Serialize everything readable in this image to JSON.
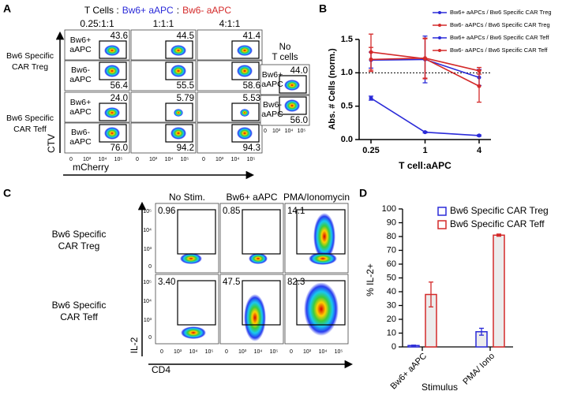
{
  "panel_labels": [
    "A",
    "B",
    "C",
    "D"
  ],
  "panel_a": {
    "header": [
      {
        "text": "T Cells :",
        "color": "#000000"
      },
      {
        "text": "Bw6+ aAPC",
        "color": "#2b2bd8"
      },
      {
        "text": ":",
        "color": "#000000"
      },
      {
        "text": "Bw6- aAPC",
        "color": "#d42a2a"
      }
    ],
    "columns": [
      "0.25:1:1",
      "1:1:1",
      "4:1:1"
    ],
    "rows": [
      {
        "label": [
          "Bw6 Specific",
          "CAR Treg"
        ],
        "top": [
          "43.6",
          "44.5",
          "41.4"
        ],
        "bottom": [
          "56.4",
          "55.5",
          "58.6"
        ]
      },
      {
        "label": [
          "Bw6 Specific",
          "CAR Teff"
        ],
        "top": [
          "24.0",
          "5.79",
          "5.53"
        ],
        "bottom": [
          "76.0",
          "94.2",
          "94.3"
        ]
      }
    ],
    "gate_labels": {
      "top": [
        "Bw6+",
        "aAPC"
      ],
      "bottom": [
        "Bw6-",
        "aAPC"
      ]
    },
    "control": {
      "label": [
        "No",
        "T cells"
      ],
      "top": "44.0",
      "bottom": "56.0"
    },
    "y_axis": "CTV",
    "x_axis": "mCherry",
    "ticks": [
      "0",
      "10³",
      "10⁴",
      "10⁵"
    ]
  },
  "panel_c": {
    "columns": [
      "No Stim.",
      "Bw6+ aAPC",
      "PMA/Ionomycin"
    ],
    "rows": [
      {
        "label": [
          "Bw6 Specific",
          "CAR Treg"
        ],
        "values": [
          "0.96",
          "0.85",
          "14.1"
        ]
      },
      {
        "label": [
          "Bw6 Specific",
          "CAR Teff"
        ],
        "values": [
          "3.40",
          "47.5",
          "82.3"
        ]
      }
    ],
    "y_axis": "IL-2",
    "x_axis": "CD4",
    "ticks": [
      "0",
      "10³",
      "10⁴",
      "10⁵"
    ]
  },
  "chart_data": [
    {
      "type": "line",
      "x_label": "T cell:aAPC",
      "y_label": "Abs. # Cells (norm.)",
      "categories": [
        "0.25",
        "1",
        "4"
      ],
      "ylim": [
        0,
        1.5
      ],
      "yticks": [
        {
          "value": 0,
          "label": "0.0"
        },
        {
          "value": 0.5,
          "label": "0.5"
        },
        {
          "value": 1,
          "label": "1.0"
        },
        {
          "value": 1.5,
          "label": "1.5"
        }
      ],
      "reference_line": 1,
      "legend": "top-right",
      "series": [
        {
          "name": "Bw6+ aAPCs / Bw6 Specific CAR Treg",
          "color": "#2b2bd8",
          "values": [
            1.19,
            1.2,
            0.93
          ],
          "errors": [
            0.12,
            0.35,
            0.12
          ]
        },
        {
          "name": "Bw6- aAPCs / Bw6 Specific CAR Treg",
          "color": "#d42a2a",
          "values": [
            1.31,
            1.21,
            0.8
          ],
          "errors": [
            0.27,
            0.3,
            0.24
          ]
        },
        {
          "name": "Bw6+ aAPCs / Bw6 Specific CAR Teff",
          "color": "#2b2bd8",
          "values": [
            0.62,
            0.11,
            0.06
          ],
          "errors": [
            0.03,
            0.01,
            0.01
          ]
        },
        {
          "name": "Bw6- aAPCs / Bw6 Specific CAR Teff",
          "color": "#d42a2a",
          "values": [
            1.2,
            1.22,
            1.03
          ],
          "errors": [
            0.18,
            0.3,
            0.05
          ]
        }
      ]
    },
    {
      "type": "bar",
      "x_label": "Stimulus",
      "y_label": "% IL-2+",
      "categories": [
        "Bw6+ aAPC",
        "PMA/ Iono"
      ],
      "ylim": [
        0,
        100
      ],
      "yticks": [
        0,
        10,
        20,
        30,
        40,
        50,
        60,
        70,
        80,
        90,
        100
      ],
      "legend": "top-right",
      "series": [
        {
          "name": "Bw6 Specific CAR Treg",
          "color": "#2b2bd8",
          "values": [
            1,
            11
          ],
          "errors": [
            0.3,
            2.5
          ]
        },
        {
          "name": "Bw6 Specific CAR Teff",
          "color": "#d42a2a",
          "values": [
            38,
            81
          ],
          "errors": [
            9,
            0.8
          ]
        }
      ]
    }
  ]
}
